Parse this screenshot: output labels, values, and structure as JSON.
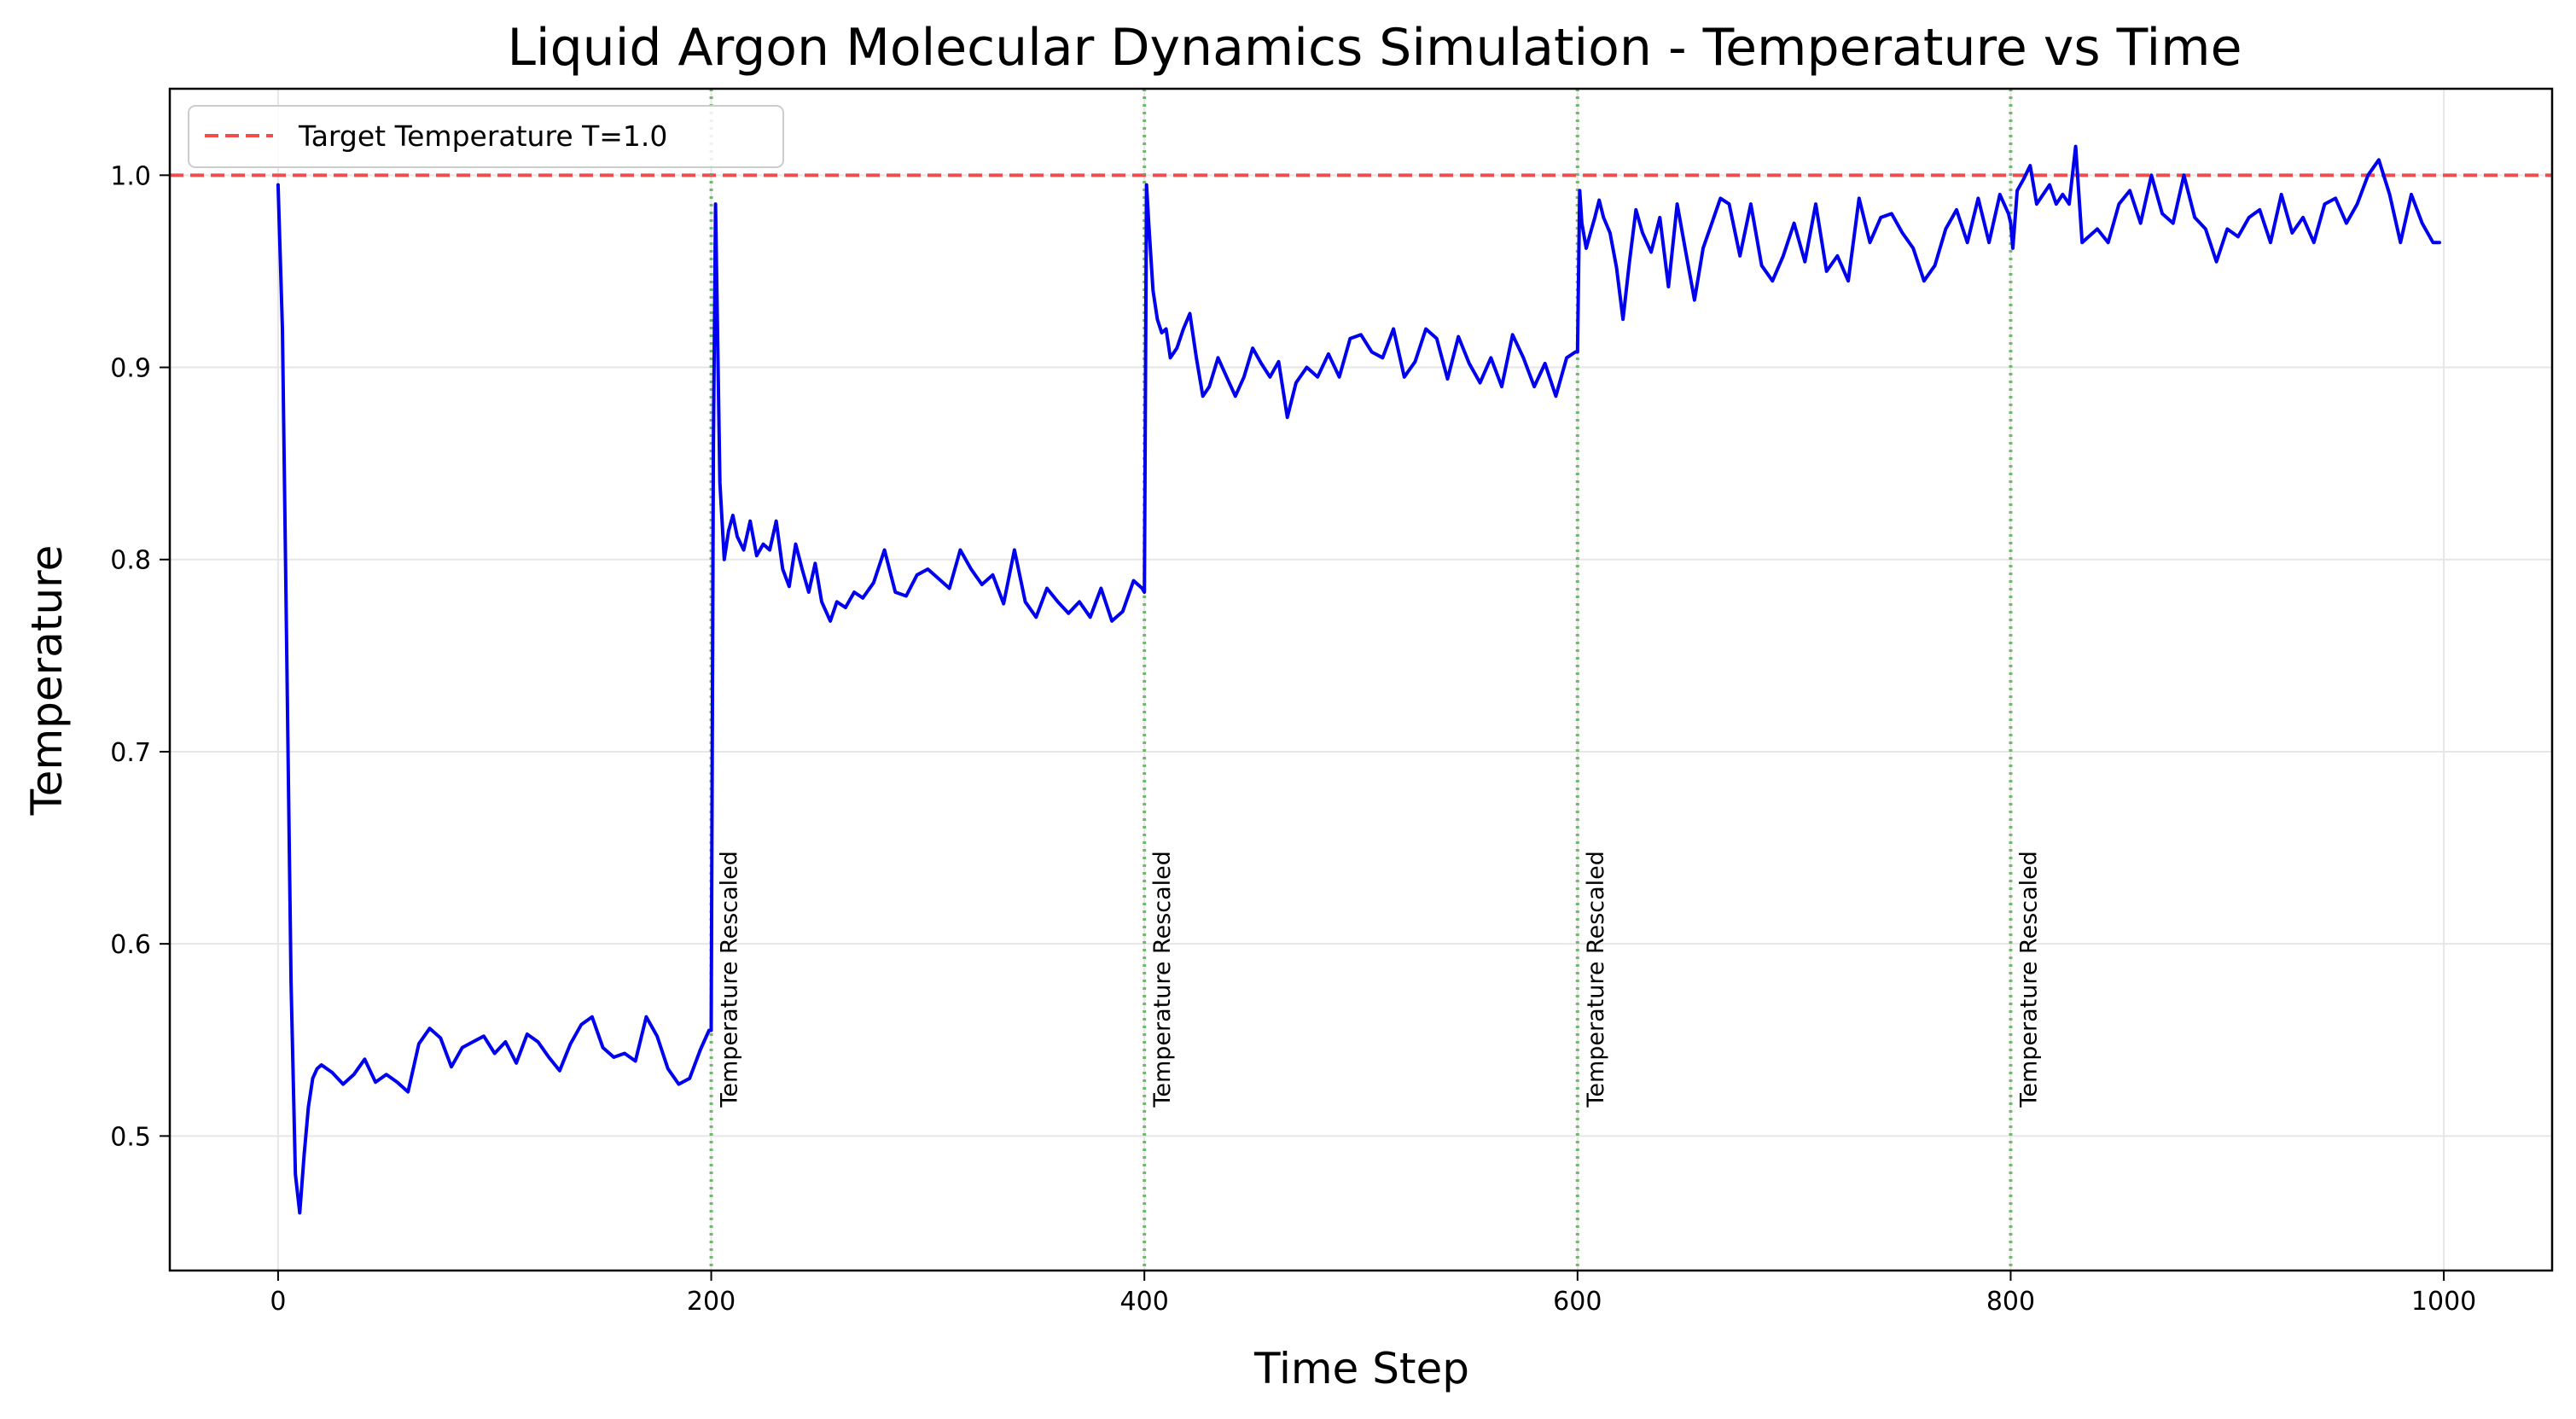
{
  "chart_data": {
    "type": "line",
    "title": "Liquid Argon Molecular Dynamics Simulation - Temperature vs Time",
    "xlabel": "Time Step",
    "ylabel": "Temperature",
    "xlim": [
      -50,
      1050
    ],
    "ylim": [
      0.43,
      1.045
    ],
    "xticks": [
      0,
      200,
      400,
      600,
      800,
      1000
    ],
    "yticks": [
      0.5,
      0.6,
      0.7,
      0.8,
      0.9,
      1.0
    ],
    "xtick_labels": [
      "0",
      "200",
      "400",
      "600",
      "800",
      "1000"
    ],
    "ytick_labels": [
      "0.5",
      "0.6",
      "0.7",
      "0.8",
      "0.9",
      "1.0"
    ],
    "grid": true,
    "legend": "top-left",
    "colors": {
      "series": "#0000ee",
      "target": "#f03c3c",
      "rescale": "#5aae5a"
    },
    "target": {
      "label": "Target Temperature T=1.0",
      "value": 1.0
    },
    "rescale_markers": [
      {
        "x": 200,
        "label": "Temperature Rescaled"
      },
      {
        "x": 400,
        "label": "Temperature Rescaled"
      },
      {
        "x": 600,
        "label": "Temperature Rescaled"
      },
      {
        "x": 800,
        "label": "Temperature Rescaled"
      }
    ],
    "series": [
      {
        "x": [
          0,
          2,
          4,
          6,
          8,
          10,
          12,
          14,
          16,
          18,
          20,
          25,
          30,
          35,
          40,
          45,
          50,
          55,
          60,
          65,
          70,
          75,
          80,
          85,
          90,
          95,
          100,
          105,
          110,
          115,
          120,
          125,
          130,
          135,
          140,
          145,
          150,
          155,
          160,
          165,
          170,
          175,
          180,
          185,
          190,
          195,
          199,
          200,
          201,
          202,
          204,
          206,
          208,
          210,
          212,
          215,
          218,
          221,
          224,
          227,
          230,
          233,
          236,
          239,
          242,
          245,
          248,
          251,
          255,
          258,
          262,
          266,
          270,
          275,
          280,
          285,
          290,
          295,
          300,
          305,
          310,
          315,
          320,
          325,
          330,
          335,
          340,
          345,
          350,
          355,
          360,
          365,
          370,
          375,
          380,
          385,
          390,
          395,
          399,
          400,
          401,
          402,
          404,
          406,
          408,
          410,
          412,
          415,
          418,
          421,
          424,
          427,
          430,
          434,
          438,
          442,
          446,
          450,
          454,
          458,
          462,
          466,
          470,
          475,
          480,
          485,
          490,
          495,
          500,
          505,
          510,
          515,
          520,
          525,
          530,
          535,
          540,
          545,
          550,
          555,
          560,
          565,
          570,
          575,
          580,
          585,
          590,
          595,
          599,
          600,
          601,
          602,
          604,
          606,
          608,
          610,
          612,
          615,
          618,
          621,
          624,
          627,
          630,
          634,
          638,
          642,
          646,
          650,
          654,
          658,
          662,
          666,
          670,
          675,
          680,
          685,
          690,
          695,
          700,
          705,
          710,
          715,
          720,
          725,
          730,
          735,
          740,
          745,
          750,
          755,
          760,
          765,
          770,
          775,
          780,
          785,
          790,
          795,
          799,
          800,
          801,
          803,
          806,
          809,
          812,
          815,
          818,
          821,
          824,
          827,
          830,
          833,
          836,
          840,
          845,
          850,
          855,
          860,
          865,
          870,
          875,
          880,
          885,
          890,
          895,
          900,
          905,
          910,
          915,
          920,
          925,
          930,
          935,
          940,
          945,
          950,
          955,
          960,
          965,
          970,
          975,
          980,
          985,
          990,
          995,
          998
        ],
        "values": [
          0.995,
          0.92,
          0.75,
          0.58,
          0.48,
          0.46,
          0.49,
          0.515,
          0.53,
          0.535,
          0.537,
          0.533,
          0.527,
          0.532,
          0.54,
          0.528,
          0.532,
          0.528,
          0.523,
          0.548,
          0.556,
          0.551,
          0.536,
          0.546,
          0.549,
          0.552,
          0.543,
          0.549,
          0.538,
          0.553,
          0.549,
          0.541,
          0.534,
          0.548,
          0.558,
          0.562,
          0.546,
          0.541,
          0.543,
          0.539,
          0.562,
          0.552,
          0.535,
          0.527,
          0.53,
          0.545,
          0.555,
          0.555,
          0.86,
          0.985,
          0.84,
          0.8,
          0.815,
          0.823,
          0.812,
          0.805,
          0.82,
          0.802,
          0.808,
          0.805,
          0.82,
          0.795,
          0.786,
          0.808,
          0.795,
          0.783,
          0.798,
          0.778,
          0.768,
          0.778,
          0.775,
          0.783,
          0.78,
          0.788,
          0.805,
          0.783,
          0.781,
          0.792,
          0.795,
          0.79,
          0.785,
          0.805,
          0.795,
          0.787,
          0.792,
          0.777,
          0.805,
          0.778,
          0.77,
          0.785,
          0.778,
          0.772,
          0.778,
          0.77,
          0.785,
          0.768,
          0.773,
          0.789,
          0.785,
          0.783,
          0.995,
          0.975,
          0.94,
          0.925,
          0.918,
          0.92,
          0.905,
          0.91,
          0.92,
          0.928,
          0.905,
          0.885,
          0.89,
          0.905,
          0.895,
          0.885,
          0.895,
          0.91,
          0.902,
          0.895,
          0.903,
          0.874,
          0.892,
          0.9,
          0.895,
          0.907,
          0.895,
          0.915,
          0.917,
          0.908,
          0.905,
          0.92,
          0.895,
          0.903,
          0.92,
          0.915,
          0.894,
          0.916,
          0.902,
          0.892,
          0.905,
          0.89,
          0.917,
          0.905,
          0.89,
          0.902,
          0.885,
          0.905,
          0.908,
          0.908,
          0.992,
          0.975,
          0.962,
          0.97,
          0.978,
          0.987,
          0.978,
          0.97,
          0.952,
          0.925,
          0.955,
          0.982,
          0.97,
          0.96,
          0.978,
          0.942,
          0.985,
          0.96,
          0.935,
          0.962,
          0.975,
          0.988,
          0.985,
          0.958,
          0.985,
          0.953,
          0.945,
          0.958,
          0.975,
          0.955,
          0.985,
          0.95,
          0.958,
          0.945,
          0.988,
          0.965,
          0.978,
          0.98,
          0.97,
          0.962,
          0.945,
          0.953,
          0.972,
          0.982,
          0.965,
          0.988,
          0.965,
          0.99,
          0.98,
          0.975,
          0.962,
          0.992,
          0.998,
          1.005,
          0.985,
          0.99,
          0.995,
          0.985,
          0.99,
          0.985,
          1.015,
          0.965,
          0.968,
          0.972,
          0.965,
          0.985,
          0.992,
          0.975,
          1.0,
          0.98,
          0.975,
          1.0,
          0.978,
          0.972,
          0.955,
          0.972,
          0.968,
          0.978,
          0.982,
          0.965,
          0.99,
          0.97,
          0.978,
          0.965,
          0.985,
          0.988,
          0.975,
          0.985,
          1.0,
          1.008,
          0.99,
          0.965,
          0.99,
          0.975,
          0.965,
          0.965
        ]
      }
    ]
  }
}
